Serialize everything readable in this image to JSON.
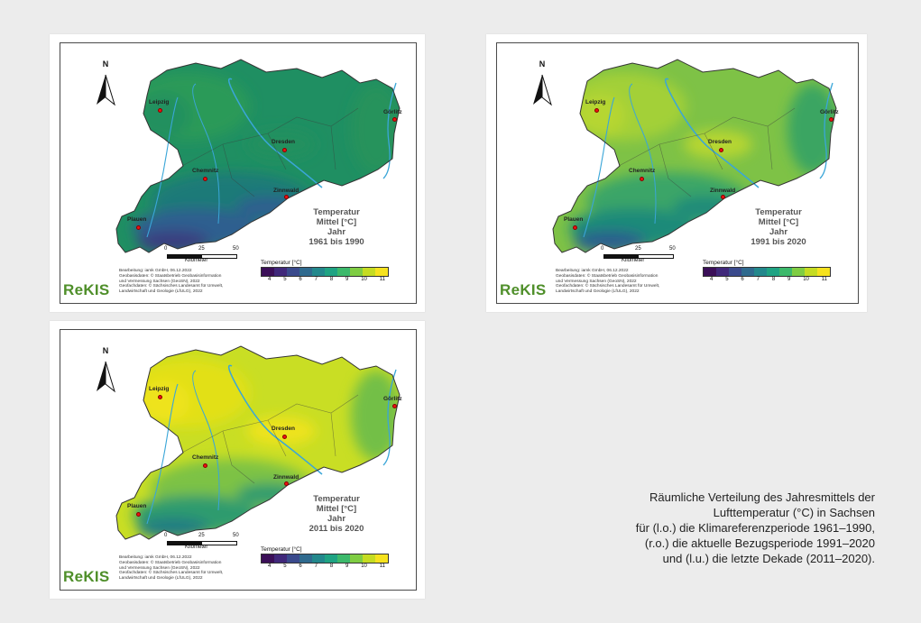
{
  "maps": [
    {
      "id": "map-1961-1990",
      "title_lines": [
        "Temperatur",
        "Mittel [°C]",
        "Jahr",
        "1961 bis 1990"
      ],
      "palette": {
        "main": "#1f8f62",
        "north": "#2b9a58",
        "lowlands": "#23905f",
        "hills": "#1b7a78",
        "mountains": "#2d5e8f",
        "peaks": "#3b3d80",
        "east": "#26935b"
      }
    },
    {
      "id": "map-1991-2020",
      "title_lines": [
        "Temperatur",
        "Mittel [°C]",
        "Jahr",
        "1991 bis 2020"
      ],
      "palette": {
        "main": "#7ec246",
        "north": "#a3d038",
        "lowlands": "#b6d630",
        "hills": "#3aa567",
        "mountains": "#1f8a79",
        "peaks": "#2c5f8e",
        "east": "#3aa562"
      }
    },
    {
      "id": "map-2011-2020",
      "title_lines": [
        "Temperatur",
        "Mittel [°C]",
        "Jahr",
        "2011 bis 2020"
      ],
      "palette": {
        "main": "#c9de24",
        "north": "#e2e019",
        "lowlands": "#eee31a",
        "hills": "#7dc245",
        "mountains": "#2e9b6e",
        "peaks": "#237d82",
        "east": "#73bf47"
      }
    }
  ],
  "common": {
    "north_label": "N",
    "cities": [
      "Leipzig",
      "Dresden",
      "Görlitz",
      "Chemnitz",
      "Zinnwald",
      "Plauen"
    ],
    "legend_title": "Temperatur [°C]",
    "legend_ticks": [
      "4",
      "5",
      "6",
      "7",
      "8",
      "9",
      "10",
      "11"
    ],
    "legend_colors": [
      "#3b0f58",
      "#40287a",
      "#3a4a8c",
      "#2f6a8e",
      "#23888c",
      "#1fa383",
      "#3cb96b",
      "#7fcd43",
      "#c5dc22",
      "#f6e21e"
    ],
    "scale_ticks": [
      "0",
      "25",
      "50"
    ],
    "scale_unit": "Kilometer",
    "credits": [
      "Bearbeitung: iamk GmbH, 06.12.2022",
      "Geobasisdaten: © Staatsbetrieb Geobasisinformation",
      "und Vermessung Sachsen (GeoSN), 2022",
      "Geofachdaten: © Sächsisches Landesamt für Umwelt,",
      "Landwirtschaft und Geologie (LfULG), 2022"
    ],
    "brand": "ReKIS"
  },
  "caption": {
    "lines": [
      "Räumliche Verteilung des Jahresmittels der",
      "Lufttemperatur (°C) in Sachsen",
      "für (l.o.) die Klimareferenzperiode 1961–1990,",
      "(r.o.) die aktuelle Bezugsperiode 1991–2020",
      "und (l.u.) die letzte Dekade (2011–2020)."
    ]
  }
}
